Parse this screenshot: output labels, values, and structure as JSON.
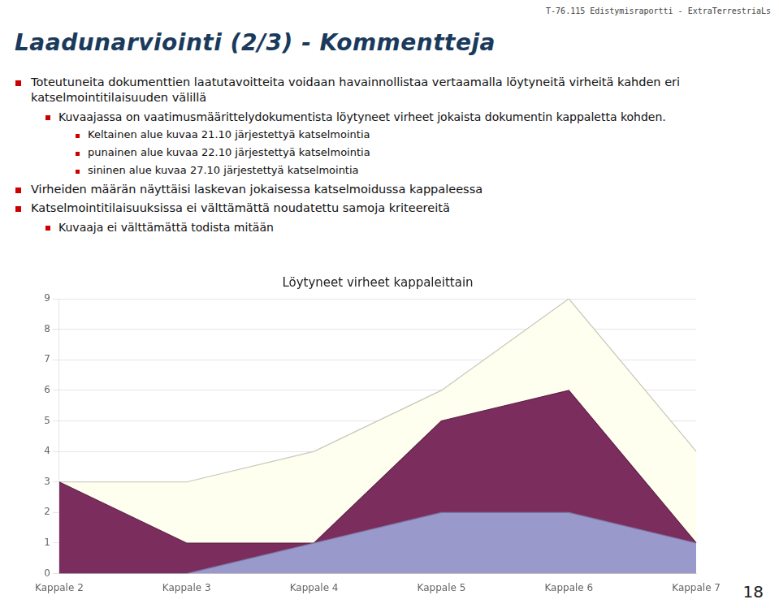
{
  "chart_data": {
    "type": "area",
    "title": "Löytyneet virheet kappaleittain",
    "categories": [
      "Kappale 2",
      "Kappale 3",
      "Kappale 4",
      "Kappale 5",
      "Kappale 6",
      "Kappale 7"
    ],
    "series": [
      {
        "color": "#FFFFF0",
        "values": [
          3,
          3,
          4,
          6,
          9,
          4
        ]
      },
      {
        "color": "#7B2D5E",
        "values": [
          3,
          1,
          1,
          5,
          6,
          1
        ]
      },
      {
        "color": "#9999CC",
        "values": [
          0,
          0,
          1,
          2,
          2,
          1
        ]
      }
    ],
    "ylim": [
      0,
      9
    ],
    "yticks": [
      0,
      1,
      2,
      3,
      4,
      5,
      6,
      7,
      8,
      9
    ],
    "grid": true,
    "annotations": [
      "T-76.115 Edistymisraportti - ExtraTerrestriaLs",
      "Laadunarviointi (2/3) - Kommentteja",
      "Toteutuneita dokumenttien laatutavoitteita voidaan havainnollistaa vertaamalla löytyneitä virheitä kahden eri katselmointitilaisuuden välillä",
      "Kuvaajassa on vaatimusmäärittelydokumentista löytyneet virheet jokaista dokumentin kappaletta kohden.",
      "Keltainen alue kuvaa 21.10 järjestettyä katselmointia",
      "punainen alue kuvaa 22.10 järjestettyä katselmointia",
      "sininen alue kuvaa 27.10 järjestettyä katselmointia",
      "Virheiden määrän näyttäisi laskevan jokaisessa katselmoidussa kappaleessa",
      "Katselmointitilaisuuksissa ei välttämättä noudatettu samoja kriteereitä",
      "Kuvaaja ei välttämättä todista mitään",
      "18"
    ]
  }
}
